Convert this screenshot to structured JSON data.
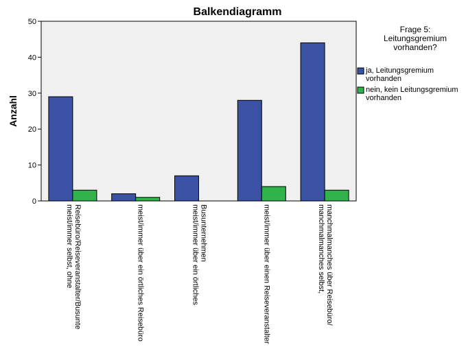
{
  "chart_data": {
    "type": "bar",
    "title": "Balkendiagramm",
    "xlabel": "",
    "ylabel": "Anzahl",
    "ylim": [
      0,
      50
    ],
    "yticks": [
      0,
      10,
      20,
      30,
      40,
      50
    ],
    "grid": false,
    "categories": [
      [
        "meist/immer selbst, ohne",
        "Reisebüro/Reiseveranstalter/Busunte"
      ],
      [
        "meist/immer über ein örtliches Reisebüro"
      ],
      [
        "meist/immer über ein örtliches",
        "Busunternehmen"
      ],
      [
        "meist/immer über einen Reiseveranstalter"
      ],
      [
        "manchmalmanches selbst,",
        "manchmalmanches über Reisebüro/"
      ]
    ],
    "legend": {
      "title": [
        "Frage 5:",
        "Leitungsgremium",
        "vorhanden?"
      ],
      "placement": "right"
    },
    "series": [
      {
        "name": [
          "ja, Leitungsgremium",
          "vorhanden"
        ],
        "color": "#3b51a3",
        "values": [
          29,
          2,
          7,
          28,
          44
        ]
      },
      {
        "name": [
          "nein, kein Leitungsgremium",
          "vorhanden"
        ],
        "color": "#2fb34a",
        "values": [
          3,
          1,
          0,
          4,
          3
        ]
      }
    ]
  }
}
